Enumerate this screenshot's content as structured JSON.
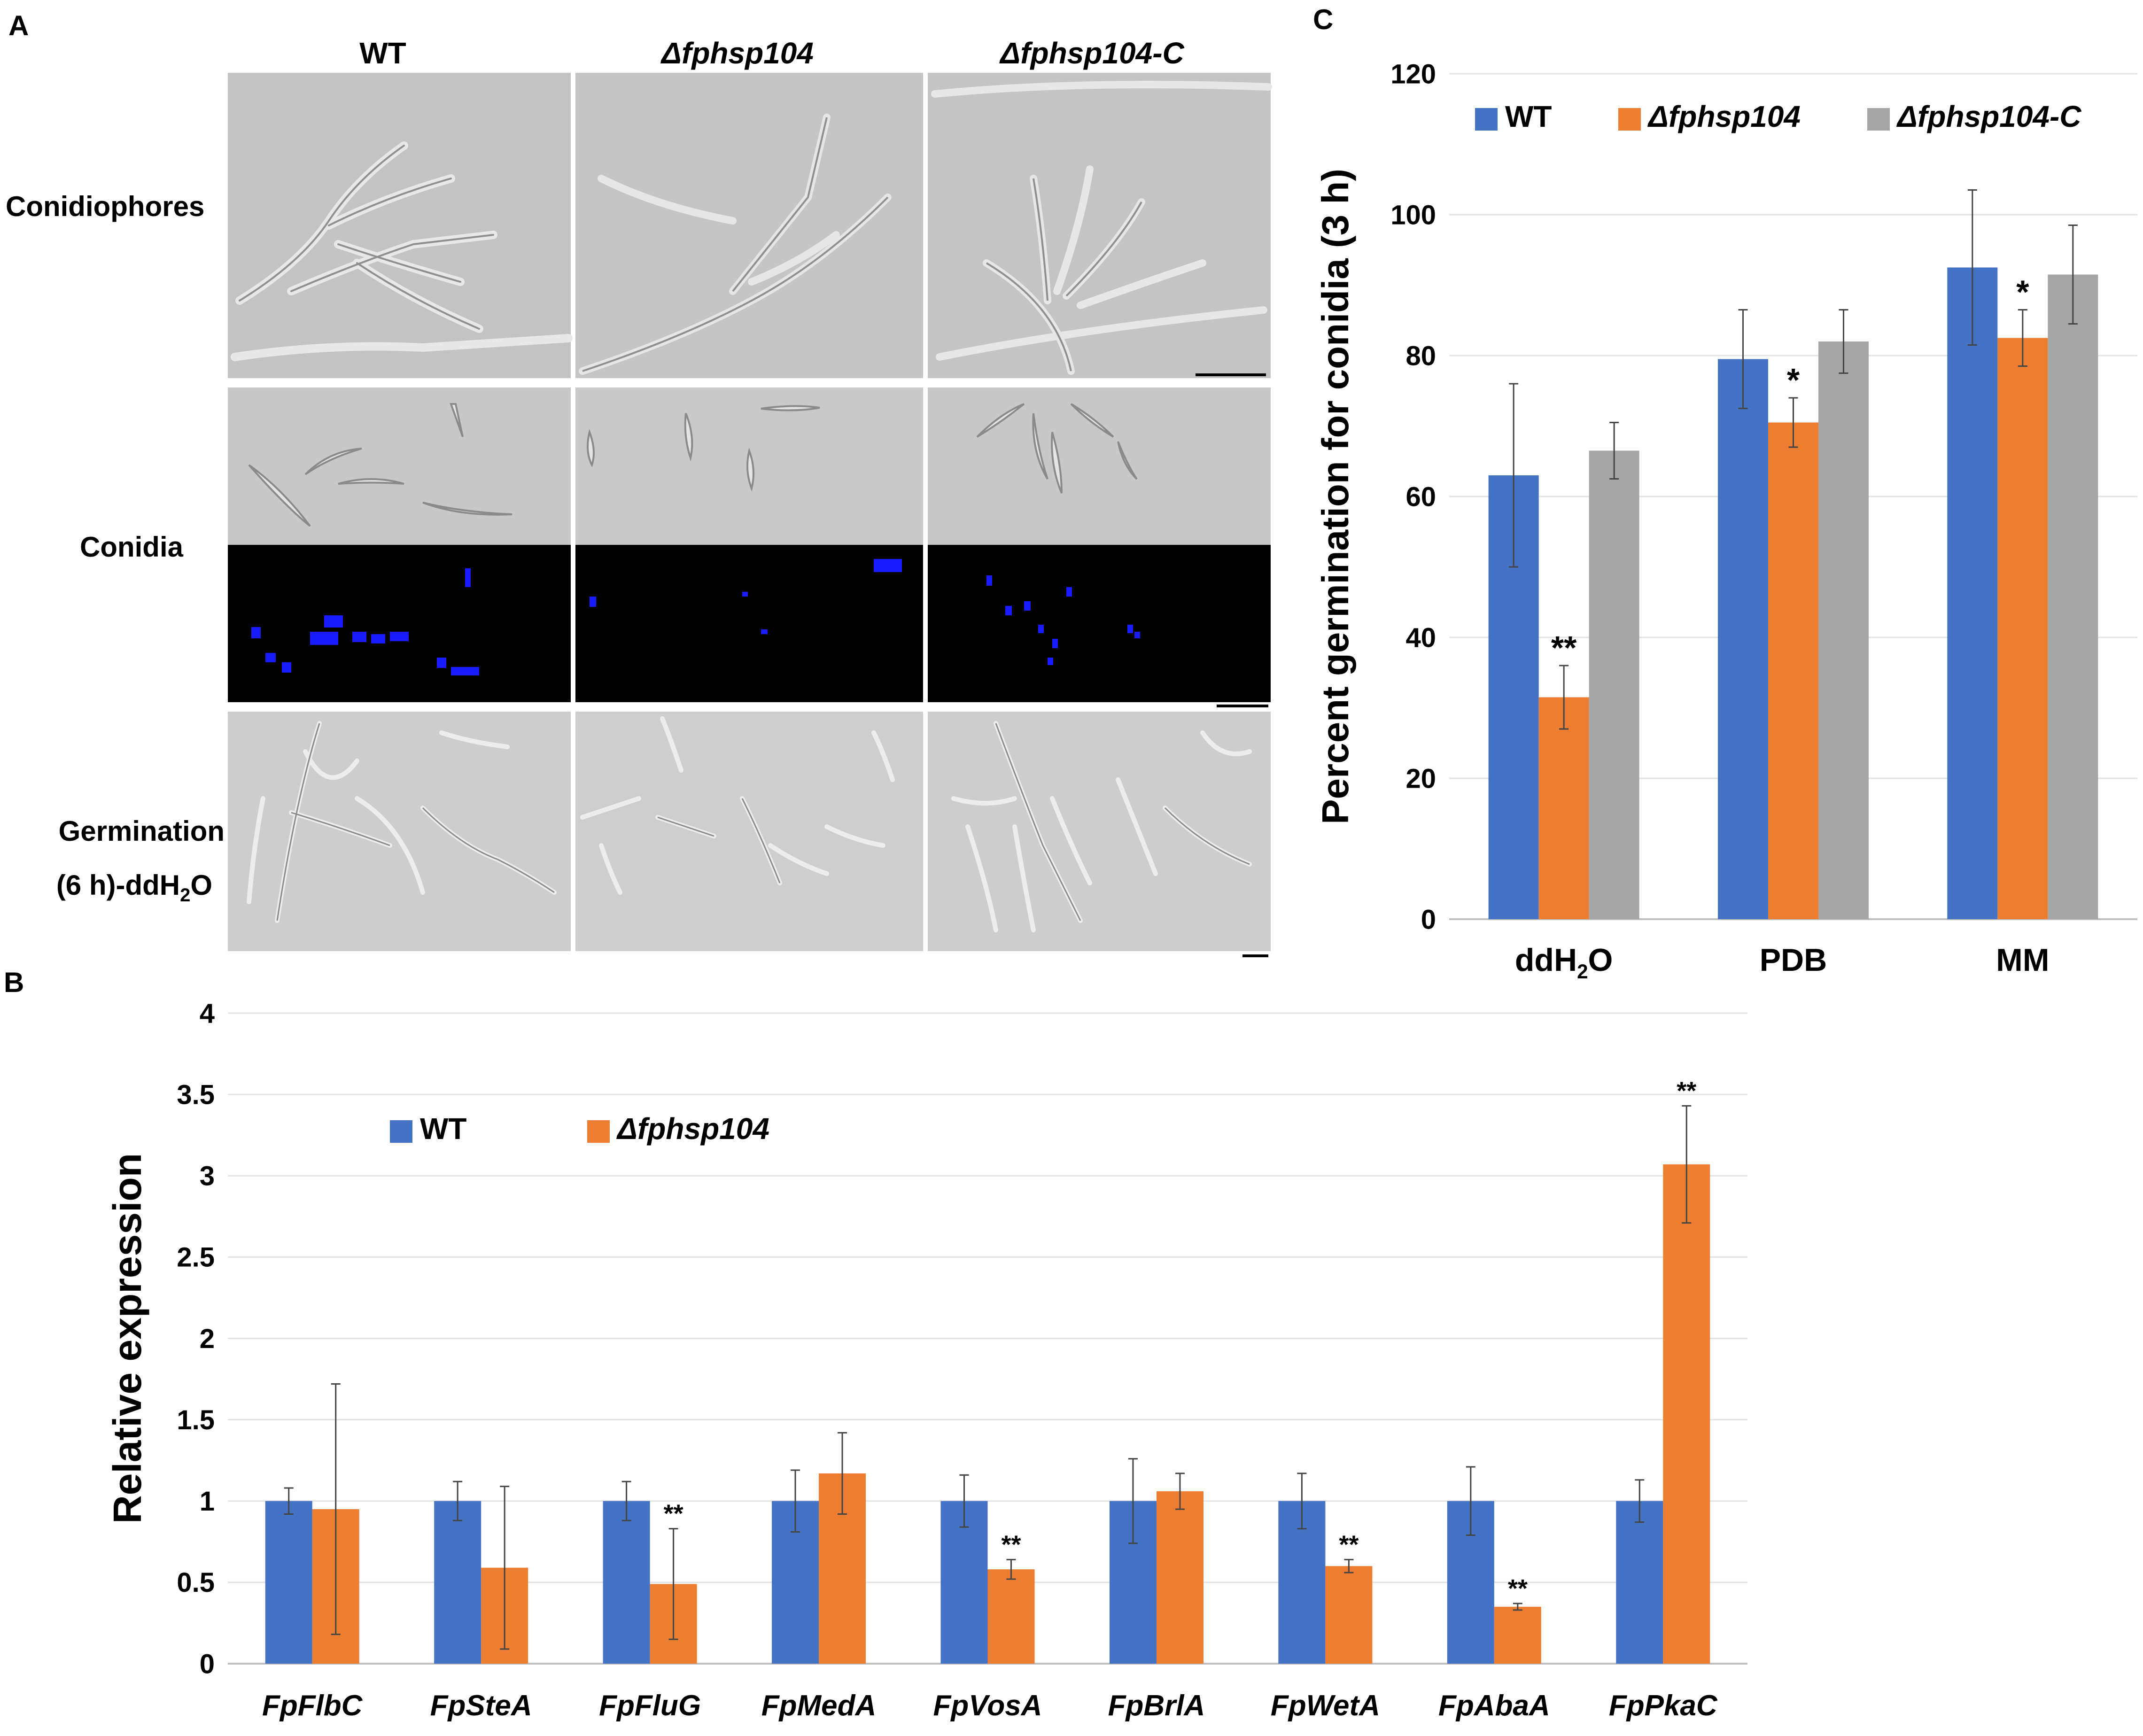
{
  "panel_a": {
    "label": "A",
    "columns": [
      "WT",
      "Δfphsp104",
      "Δfphsp104-C"
    ],
    "rows": [
      {
        "label": "Conidiophores"
      },
      {
        "label": "Conidia"
      },
      {
        "label_line1": "Germination",
        "label_line2_prefix": "(6 h)-ddH",
        "label_line2_sub": "2",
        "label_line2_suffix": "O"
      }
    ]
  },
  "colors": {
    "wt": "#4472C4",
    "mutant": "#ED7D31",
    "complement": "#A5A5A5",
    "stain": "#1a1aff"
  },
  "chart_data": [
    {
      "panel": "B",
      "type": "bar",
      "title": "",
      "xlabel": "",
      "ylabel": "Relative expression",
      "ylim": [
        0,
        4
      ],
      "yticks": [
        0,
        0.5,
        1,
        1.5,
        2,
        2.5,
        3,
        3.5,
        4
      ],
      "ytick_labels": [
        "0",
        "0.5",
        "1",
        "1.5",
        "2",
        "2.5",
        "3",
        "3.5",
        "4"
      ],
      "grid": true,
      "legend_position": "top-left",
      "categories": [
        "FpFlbC",
        "FpSteA",
        "FpFluG",
        "FpMedA",
        "FpVosA",
        "FpBrlA",
        "FpWetA",
        "FpAbaA",
        "FpPkaC"
      ],
      "series": [
        {
          "name": "WT",
          "color": "#4472C4",
          "values": [
            1.0,
            1.0,
            1.0,
            1.0,
            1.0,
            1.0,
            1.0,
            1.0,
            1.0
          ],
          "errors": [
            0.08,
            0.12,
            0.12,
            0.19,
            0.16,
            0.26,
            0.17,
            0.21,
            0.13
          ],
          "marks": [
            "",
            "",
            "",
            "",
            "",
            "",
            "",
            "",
            ""
          ]
        },
        {
          "name": "Δfphsp104",
          "color": "#ED7D31",
          "values": [
            0.95,
            0.59,
            0.49,
            1.17,
            0.58,
            1.06,
            0.6,
            0.35,
            3.07
          ],
          "errors": [
            0.77,
            0.5,
            0.34,
            0.25,
            0.06,
            0.11,
            0.04,
            0.02,
            0.36
          ],
          "marks": [
            "",
            "",
            "**",
            "",
            "**",
            "",
            "**",
            "**",
            "**"
          ]
        }
      ]
    },
    {
      "panel": "C",
      "type": "bar",
      "title": "",
      "xlabel": "",
      "ylabel": "Percent germination for conidia (3 h)",
      "ylim": [
        0,
        120
      ],
      "yticks": [
        0,
        20,
        40,
        60,
        80,
        100,
        120
      ],
      "ytick_labels": [
        "0",
        "20",
        "40",
        "60",
        "80",
        "100",
        "120"
      ],
      "grid": true,
      "legend_position": "top",
      "categories": [
        {
          "text": "ddH",
          "sub": "2",
          "tail": "O"
        },
        {
          "text": "PDB",
          "sub": "",
          "tail": ""
        },
        {
          "text": "MM",
          "sub": "",
          "tail": ""
        }
      ],
      "series": [
        {
          "name": "WT",
          "color": "#4472C4",
          "values": [
            63,
            79.5,
            92.5
          ],
          "errors": [
            13,
            7,
            11
          ],
          "marks": [
            "",
            "",
            ""
          ]
        },
        {
          "name": "Δfphsp104",
          "color": "#ED7D31",
          "values": [
            31.5,
            70.5,
            82.5
          ],
          "errors": [
            4.5,
            3.5,
            4
          ],
          "marks": [
            "**",
            "*",
            "*"
          ]
        },
        {
          "name": "Δfphsp104-C",
          "color": "#A5A5A5",
          "values": [
            66.5,
            82,
            91.5
          ],
          "errors": [
            4,
            4.5,
            7
          ],
          "marks": [
            "",
            "",
            ""
          ]
        }
      ]
    }
  ]
}
